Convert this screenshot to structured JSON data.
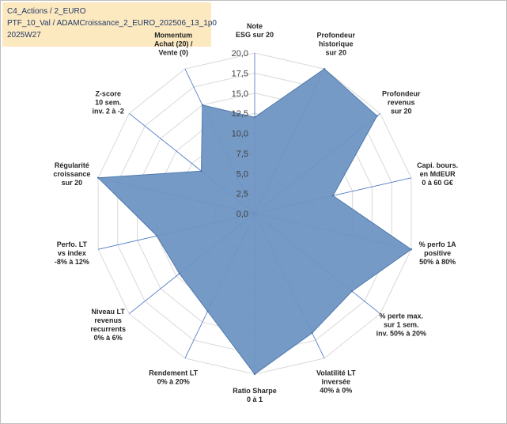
{
  "header": {
    "line1": "C4_Actions / 2_EURO",
    "line2": "PTF_10_Val / ADAMCroissance_2_EURO_202506_13_1p0",
    "line3": "2025W27"
  },
  "colors": {
    "fill": "#6f95c3",
    "stroke": "#4f79ad",
    "grid": "#d9d9d9",
    "spoke": "#4472c4",
    "title_bg": "#fde9c0",
    "title_text": "#1f3864"
  },
  "chart_data": {
    "type": "radar",
    "rmin": 0,
    "rmax": 20,
    "ticks": [
      "0,0",
      "2,5",
      "5,0",
      "7,5",
      "10,0",
      "12,5",
      "15,0",
      "17,5",
      "20,0"
    ],
    "axes": [
      {
        "lines": [
          "Note",
          "ESG sur 20"
        ]
      },
      {
        "lines": [
          "Profondeur",
          "historique",
          "sur 20"
        ]
      },
      {
        "lines": [
          "Profondeur",
          "revenus",
          "sur 20"
        ]
      },
      {
        "lines": [
          "Capi. bours.",
          "en MdEUR",
          "0 à 60 G€"
        ]
      },
      {
        "lines": [
          "% perfo 1A",
          "positive",
          "50% à 80%"
        ]
      },
      {
        "lines": [
          "% perte max.",
          "sur 1 sem.",
          "inv. 50% à 20%"
        ]
      },
      {
        "lines": [
          "Volatilité LT",
          "inversée",
          "40% à 0%"
        ]
      },
      {
        "lines": [
          "Ratio Sharpe",
          "0 à 1"
        ]
      },
      {
        "lines": [
          "Rendement LT",
          "0% à 20%"
        ]
      },
      {
        "lines": [
          "Niveau LT",
          "revenus",
          "recurrents",
          "0% à 6%"
        ]
      },
      {
        "lines": [
          "Perfo. LT",
          "vs index",
          "-8% à 12%"
        ]
      },
      {
        "lines": [
          "Régularité",
          "croissance",
          "sur 20"
        ]
      },
      {
        "lines": [
          "Z-score",
          "10 sem.",
          "inv. 2 à -2"
        ]
      },
      {
        "lines": [
          "Momentum",
          "Achat (20) /",
          "Vente (0)"
        ]
      }
    ],
    "series": [
      {
        "values": [
          12.0,
          20.0,
          19.5,
          10.0,
          20.0,
          15.5,
          16.5,
          20.0,
          13.5,
          12.0,
          12.5,
          20.0,
          8.5,
          15.0
        ]
      }
    ]
  }
}
